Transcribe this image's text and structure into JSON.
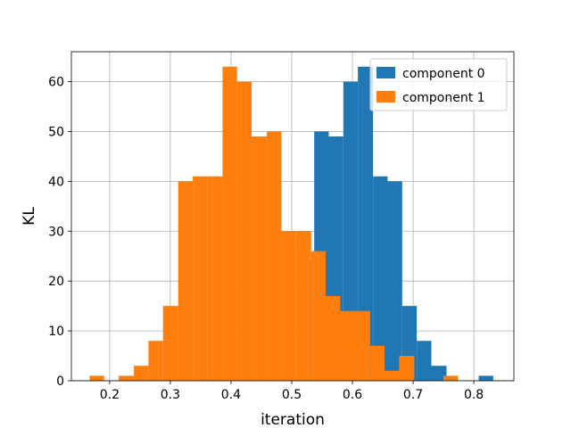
{
  "chart_data": {
    "type": "histogram",
    "xlabel": "iteration",
    "ylabel": "KL",
    "xlim": [
      0.137,
      0.866
    ],
    "ylim": [
      0,
      66
    ],
    "xticks": [
      0.2,
      0.3,
      0.4,
      0.5,
      0.6,
      0.7,
      0.8
    ],
    "xtick_labels": [
      "0.2",
      "0.3",
      "0.4",
      "0.5",
      "0.6",
      "0.7",
      "0.8"
    ],
    "yticks": [
      0,
      10,
      20,
      30,
      40,
      50,
      60
    ],
    "ytick_labels": [
      "0",
      "10",
      "20",
      "30",
      "40",
      "50",
      "60"
    ],
    "grid": true,
    "legend_position": "top-right",
    "series": [
      {
        "name": "component 0",
        "color": "#1f77b4",
        "bins": [
          {
            "x0": 0.513,
            "x1": 0.537,
            "count": 24
          },
          {
            "x0": 0.537,
            "x1": 0.561,
            "count": 50
          },
          {
            "x0": 0.561,
            "x1": 0.585,
            "count": 49
          },
          {
            "x0": 0.585,
            "x1": 0.609,
            "count": 60
          },
          {
            "x0": 0.609,
            "x1": 0.634,
            "count": 63
          },
          {
            "x0": 0.634,
            "x1": 0.658,
            "count": 41
          },
          {
            "x0": 0.658,
            "x1": 0.682,
            "count": 40
          },
          {
            "x0": 0.682,
            "x1": 0.706,
            "count": 15
          },
          {
            "x0": 0.706,
            "x1": 0.73,
            "count": 8
          },
          {
            "x0": 0.73,
            "x1": 0.755,
            "count": 3
          },
          {
            "x0": 0.808,
            "x1": 0.832,
            "count": 1
          }
        ]
      },
      {
        "name": "component 1",
        "color": "#ff7f0e",
        "bins": [
          {
            "x0": 0.167,
            "x1": 0.191,
            "count": 1
          },
          {
            "x0": 0.215,
            "x1": 0.24,
            "count": 1
          },
          {
            "x0": 0.24,
            "x1": 0.264,
            "count": 3
          },
          {
            "x0": 0.264,
            "x1": 0.288,
            "count": 8
          },
          {
            "x0": 0.288,
            "x1": 0.313,
            "count": 15
          },
          {
            "x0": 0.313,
            "x1": 0.337,
            "count": 40
          },
          {
            "x0": 0.337,
            "x1": 0.361,
            "count": 41
          },
          {
            "x0": 0.361,
            "x1": 0.386,
            "count": 41
          },
          {
            "x0": 0.386,
            "x1": 0.41,
            "count": 63
          },
          {
            "x0": 0.41,
            "x1": 0.434,
            "count": 60
          },
          {
            "x0": 0.434,
            "x1": 0.459,
            "count": 49
          },
          {
            "x0": 0.459,
            "x1": 0.483,
            "count": 50
          },
          {
            "x0": 0.483,
            "x1": 0.507,
            "count": 30
          },
          {
            "x0": 0.507,
            "x1": 0.532,
            "count": 30
          },
          {
            "x0": 0.532,
            "x1": 0.556,
            "count": 26
          },
          {
            "x0": 0.556,
            "x1": 0.58,
            "count": 17
          },
          {
            "x0": 0.58,
            "x1": 0.604,
            "count": 14
          },
          {
            "x0": 0.604,
            "x1": 0.629,
            "count": 14
          },
          {
            "x0": 0.629,
            "x1": 0.653,
            "count": 7
          },
          {
            "x0": 0.653,
            "x1": 0.677,
            "count": 2
          },
          {
            "x0": 0.677,
            "x1": 0.702,
            "count": 5
          },
          {
            "x0": 0.75,
            "x1": 0.774,
            "count": 1
          }
        ]
      }
    ]
  }
}
